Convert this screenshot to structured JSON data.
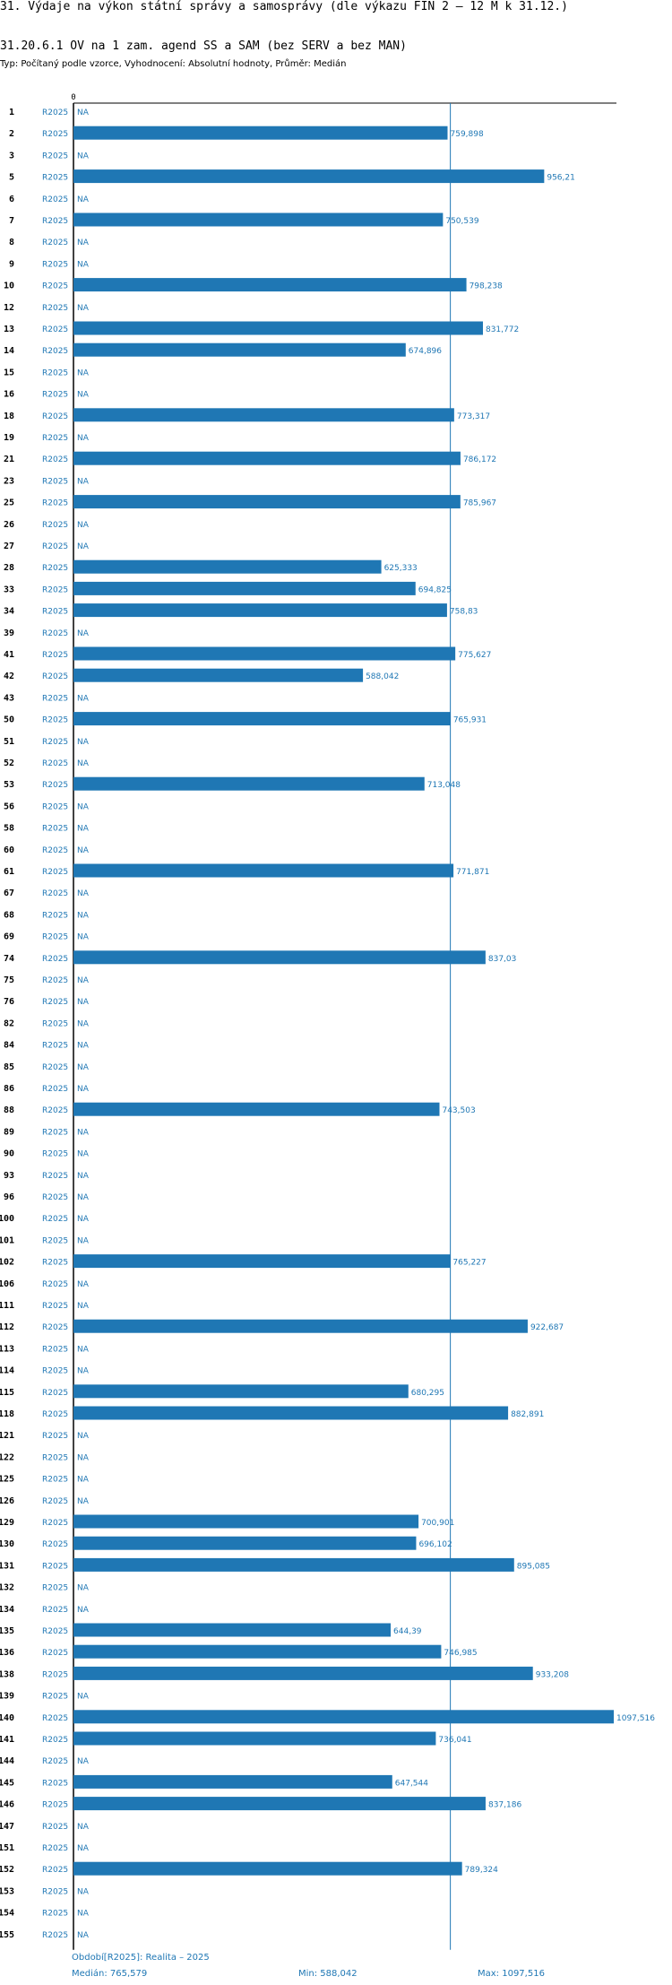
{
  "header": {
    "title": "31. Výdaje na výkon státní správy a samosprávy (dle výkazu FIN 2 – 12 M k 31.12.)",
    "subtitle": "31.20.6.1 OV na 1 zam. agend SS a SAM (bez SERV a bez MAN)",
    "type_line": "Typ: Počítaný podle vzorce, Vyhodnocení: Absolutní hodnoty, Průměr: Medián"
  },
  "footer": {
    "period": "Období[R2025]: Realita – 2025",
    "median": "Medián: 765,579",
    "min": "Min: 588,042",
    "max": "Max: 1097,516"
  },
  "colors": {
    "bar": "#1f77b4",
    "label": "#1f77b4",
    "median_line": "#1f77b4",
    "axis": "#000000"
  },
  "chart_data": {
    "type": "bar",
    "orientation": "horizontal",
    "axis_zero_label": "0",
    "series_label": "R2025",
    "na_label": "NA",
    "median": 765.579,
    "xlim": [
      0,
      1097.516
    ],
    "grid": false,
    "rows": [
      {
        "id": "1",
        "value": null,
        "label": "NA"
      },
      {
        "id": "2",
        "value": 759.898,
        "label": "759,898"
      },
      {
        "id": "3",
        "value": null,
        "label": "NA"
      },
      {
        "id": "5",
        "value": 956.21,
        "label": "956,21"
      },
      {
        "id": "6",
        "value": null,
        "label": "NA"
      },
      {
        "id": "7",
        "value": 750.539,
        "label": "750,539"
      },
      {
        "id": "8",
        "value": null,
        "label": "NA"
      },
      {
        "id": "9",
        "value": null,
        "label": "NA"
      },
      {
        "id": "10",
        "value": 798.238,
        "label": "798,238"
      },
      {
        "id": "12",
        "value": null,
        "label": "NA"
      },
      {
        "id": "13",
        "value": 831.772,
        "label": "831,772"
      },
      {
        "id": "14",
        "value": 674.896,
        "label": "674,896"
      },
      {
        "id": "15",
        "value": null,
        "label": "NA"
      },
      {
        "id": "16",
        "value": null,
        "label": "NA"
      },
      {
        "id": "18",
        "value": 773.317,
        "label": "773,317"
      },
      {
        "id": "19",
        "value": null,
        "label": "NA"
      },
      {
        "id": "21",
        "value": 786.172,
        "label": "786,172"
      },
      {
        "id": "23",
        "value": null,
        "label": "NA"
      },
      {
        "id": "25",
        "value": 785.967,
        "label": "785,967"
      },
      {
        "id": "26",
        "value": null,
        "label": "NA"
      },
      {
        "id": "27",
        "value": null,
        "label": "NA"
      },
      {
        "id": "28",
        "value": 625.333,
        "label": "625,333"
      },
      {
        "id": "33",
        "value": 694.825,
        "label": "694,825"
      },
      {
        "id": "34",
        "value": 758.83,
        "label": "758,83"
      },
      {
        "id": "39",
        "value": null,
        "label": "NA"
      },
      {
        "id": "41",
        "value": 775.627,
        "label": "775,627"
      },
      {
        "id": "42",
        "value": 588.042,
        "label": "588,042"
      },
      {
        "id": "43",
        "value": null,
        "label": "NA"
      },
      {
        "id": "50",
        "value": 765.931,
        "label": "765,931"
      },
      {
        "id": "51",
        "value": null,
        "label": "NA"
      },
      {
        "id": "52",
        "value": null,
        "label": "NA"
      },
      {
        "id": "53",
        "value": 713.048,
        "label": "713,048"
      },
      {
        "id": "56",
        "value": null,
        "label": "NA"
      },
      {
        "id": "58",
        "value": null,
        "label": "NA"
      },
      {
        "id": "60",
        "value": null,
        "label": "NA"
      },
      {
        "id": "61",
        "value": 771.871,
        "label": "771,871"
      },
      {
        "id": "67",
        "value": null,
        "label": "NA"
      },
      {
        "id": "68",
        "value": null,
        "label": "NA"
      },
      {
        "id": "69",
        "value": null,
        "label": "NA"
      },
      {
        "id": "74",
        "value": 837.03,
        "label": "837,03"
      },
      {
        "id": "75",
        "value": null,
        "label": "NA"
      },
      {
        "id": "76",
        "value": null,
        "label": "NA"
      },
      {
        "id": "82",
        "value": null,
        "label": "NA"
      },
      {
        "id": "84",
        "value": null,
        "label": "NA"
      },
      {
        "id": "85",
        "value": null,
        "label": "NA"
      },
      {
        "id": "86",
        "value": null,
        "label": "NA"
      },
      {
        "id": "88",
        "value": 743.503,
        "label": "743,503"
      },
      {
        "id": "89",
        "value": null,
        "label": "NA"
      },
      {
        "id": "90",
        "value": null,
        "label": "NA"
      },
      {
        "id": "93",
        "value": null,
        "label": "NA"
      },
      {
        "id": "96",
        "value": null,
        "label": "NA"
      },
      {
        "id": "100",
        "value": null,
        "label": "NA"
      },
      {
        "id": "101",
        "value": null,
        "label": "NA"
      },
      {
        "id": "102",
        "value": 765.227,
        "label": "765,227"
      },
      {
        "id": "106",
        "value": null,
        "label": "NA"
      },
      {
        "id": "111",
        "value": null,
        "label": "NA"
      },
      {
        "id": "112",
        "value": 922.687,
        "label": "922,687"
      },
      {
        "id": "113",
        "value": null,
        "label": "NA"
      },
      {
        "id": "114",
        "value": null,
        "label": "NA"
      },
      {
        "id": "115",
        "value": 680.295,
        "label": "680,295"
      },
      {
        "id": "118",
        "value": 882.891,
        "label": "882,891"
      },
      {
        "id": "121",
        "value": null,
        "label": "NA"
      },
      {
        "id": "122",
        "value": null,
        "label": "NA"
      },
      {
        "id": "125",
        "value": null,
        "label": "NA"
      },
      {
        "id": "126",
        "value": null,
        "label": "NA"
      },
      {
        "id": "129",
        "value": 700.901,
        "label": "700,901"
      },
      {
        "id": "130",
        "value": 696.102,
        "label": "696,102"
      },
      {
        "id": "131",
        "value": 895.085,
        "label": "895,085"
      },
      {
        "id": "132",
        "value": null,
        "label": "NA"
      },
      {
        "id": "134",
        "value": null,
        "label": "NA"
      },
      {
        "id": "135",
        "value": 644.39,
        "label": "644,39"
      },
      {
        "id": "136",
        "value": 746.985,
        "label": "746,985"
      },
      {
        "id": "138",
        "value": 933.208,
        "label": "933,208"
      },
      {
        "id": "139",
        "value": null,
        "label": "NA"
      },
      {
        "id": "140",
        "value": 1097.516,
        "label": "1097,516"
      },
      {
        "id": "141",
        "value": 736.041,
        "label": "736,041"
      },
      {
        "id": "144",
        "value": null,
        "label": "NA"
      },
      {
        "id": "145",
        "value": 647.544,
        "label": "647,544"
      },
      {
        "id": "146",
        "value": 837.186,
        "label": "837,186"
      },
      {
        "id": "147",
        "value": null,
        "label": "NA"
      },
      {
        "id": "151",
        "value": null,
        "label": "NA"
      },
      {
        "id": "152",
        "value": 789.324,
        "label": "789,324"
      },
      {
        "id": "153",
        "value": null,
        "label": "NA"
      },
      {
        "id": "154",
        "value": null,
        "label": "NA"
      },
      {
        "id": "155",
        "value": null,
        "label": "NA"
      }
    ]
  }
}
